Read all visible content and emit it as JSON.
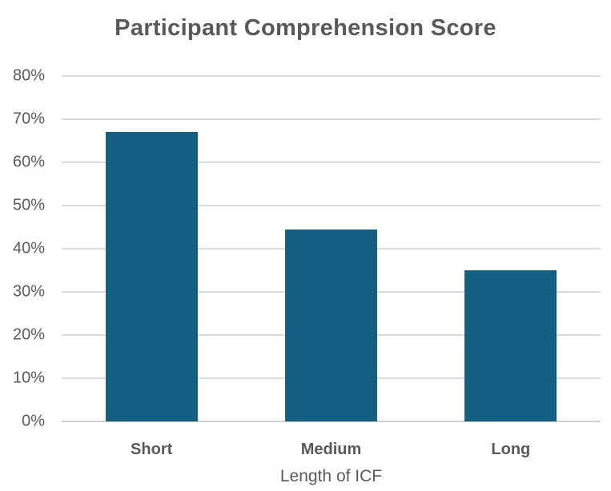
{
  "chart_data": {
    "type": "bar",
    "title": "Participant Comprehension Score",
    "categories": [
      "Short",
      "Medium",
      "Long"
    ],
    "values": [
      67,
      44.5,
      35
    ],
    "xlabel": "Length of ICF",
    "ylabel": "",
    "ylim": [
      0,
      80
    ],
    "ytick_step": 10,
    "ytick_suffix": "%",
    "grid": true,
    "legend_position": "none",
    "bar_color": "#156082"
  },
  "colors": {
    "bar": "#156082",
    "gridline": "#D9D9D9",
    "axis_line": "#CFCECE",
    "text": "#595959",
    "background": "#FFFFFF"
  }
}
